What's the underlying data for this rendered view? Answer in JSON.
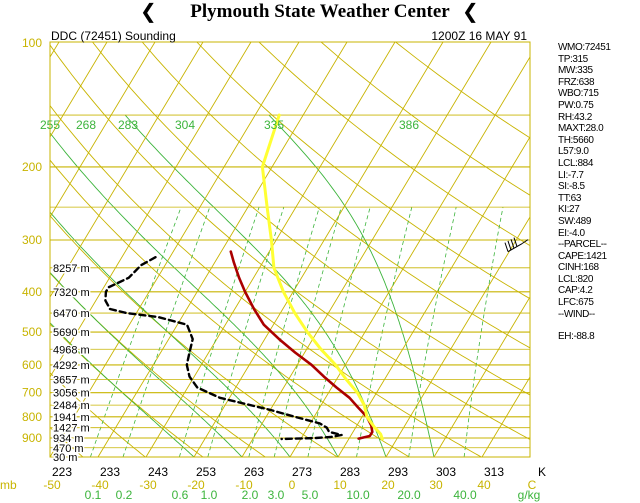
{
  "header": {
    "title": "Plymouth State Weather Center",
    "station": "DDC (72451) Sounding",
    "time": "1200Z 16 MAY 91"
  },
  "colors": {
    "isobar": "#c8b400",
    "skew_isotherm": "#c8b400",
    "dry_adiabat": "#c8b400",
    "moist_adiabat": "#3cb43c",
    "mixing_ratio": "#3cb43c",
    "temperature": "#aa0000",
    "dewpoint": "#000000",
    "parcel": "#ffff33",
    "theta_label": "#3cb43c",
    "axis_label": "#c8b400"
  },
  "sidebar": {
    "items": [
      "WMO:72451",
      "TP:315",
      "MW:335",
      "FRZ:638",
      "WBO:715",
      "PW:0.75",
      "RH:43.2",
      "MAXT:28.0",
      "TH:5660",
      "L57:9.0",
      "LCL:884",
      "LI:-7.7",
      "SI:-8.5",
      "TT:63",
      "KI:27",
      "SW:489",
      "EI:-4.0",
      "--PARCEL--",
      "CAPE:1421",
      "CINH:168",
      "LCL:820",
      "CAP:4.2",
      "LFC:675",
      "--WIND--"
    ],
    "extra": "EH:-88.8"
  },
  "chart_data": {
    "type": "line",
    "subtype": "skew-T log-P sounding",
    "title": "DDC (72451) Sounding",
    "pressure_labels": [
      "100",
      "200",
      "300",
      "400",
      "500",
      "600",
      "700",
      "800",
      "900"
    ],
    "pressure_axis_unit": "mb",
    "temperature_ticks": [
      "-50",
      "-40",
      "-30",
      "-20",
      "-10",
      "0",
      "10",
      "20",
      "30",
      "40",
      "C"
    ],
    "kelvin_ticks": [
      "223",
      "233",
      "243",
      "253",
      "263",
      "273",
      "283",
      "293",
      "303",
      "313",
      "K"
    ],
    "mixing_ratio_ticks": [
      "0.1",
      "0.2",
      "0.6",
      "1.0",
      "2.0",
      "3.0",
      "5.0",
      "10.0",
      "20.0",
      "40.0",
      "g/kg"
    ],
    "theta_labels": [
      "255",
      "268",
      "283",
      "304",
      "335",
      "386"
    ],
    "height_labels": [
      {
        "p": 350,
        "label": "8257 m"
      },
      {
        "p": 400,
        "label": "7320 m"
      },
      {
        "p": 450,
        "label": "6470 m"
      },
      {
        "p": 500,
        "label": "5690 m"
      },
      {
        "p": 550,
        "label": "4968 m"
      },
      {
        "p": 600,
        "label": "4292 m"
      },
      {
        "p": 650,
        "label": "3657 m"
      },
      {
        "p": 700,
        "label": "3056 m"
      },
      {
        "p": 750,
        "label": "2484 m"
      },
      {
        "p": 800,
        "label": "1941 m"
      },
      {
        "p": 850,
        "label": "1427 m"
      },
      {
        "p": 900,
        "label": "934 m"
      },
      {
        "p": 950,
        "label": "470 m"
      },
      {
        "p": 1000,
        "label": "30 m"
      }
    ],
    "series": [
      {
        "key": "temperature",
        "points": [
          [
            320,
            -38
          ],
          [
            340,
            -36
          ],
          [
            370,
            -33
          ],
          [
            400,
            -30
          ],
          [
            440,
            -26
          ],
          [
            480,
            -22
          ],
          [
            520,
            -17
          ],
          [
            560,
            -12
          ],
          [
            600,
            -7
          ],
          [
            640,
            -3
          ],
          [
            680,
            1
          ],
          [
            720,
            5
          ],
          [
            760,
            8
          ],
          [
            800,
            11
          ],
          [
            840,
            13
          ],
          [
            870,
            14
          ],
          [
            890,
            14
          ],
          [
            903,
            12
          ]
        ]
      },
      {
        "key": "dewpoint",
        "points": [
          [
            330,
            -53
          ],
          [
            345,
            -55
          ],
          [
            370,
            -56
          ],
          [
            390,
            -59
          ],
          [
            400,
            -59
          ],
          [
            420,
            -58
          ],
          [
            440,
            -56
          ],
          [
            450,
            -52
          ],
          [
            460,
            -45
          ],
          [
            480,
            -38
          ],
          [
            520,
            -35
          ],
          [
            560,
            -34
          ],
          [
            600,
            -33
          ],
          [
            640,
            -31
          ],
          [
            680,
            -28
          ],
          [
            720,
            -22
          ],
          [
            770,
            -10
          ],
          [
            800,
            -4
          ],
          [
            830,
            2
          ],
          [
            850,
            4
          ],
          [
            870,
            5
          ],
          [
            885,
            8
          ],
          [
            895,
            6
          ],
          [
            900,
            3
          ],
          [
            905,
            -4
          ]
        ]
      },
      {
        "key": "parcel",
        "points": [
          [
            150,
            -45
          ],
          [
            200,
            -42
          ],
          [
            250,
            -36
          ],
          [
            300,
            -31
          ],
          [
            350,
            -27
          ],
          [
            400,
            -22
          ],
          [
            450,
            -17
          ],
          [
            500,
            -12
          ],
          [
            550,
            -7
          ],
          [
            600,
            -2
          ],
          [
            650,
            2
          ],
          [
            700,
            6
          ],
          [
            750,
            9
          ],
          [
            800,
            11
          ],
          [
            850,
            14
          ],
          [
            880,
            16
          ],
          [
            905,
            17
          ]
        ]
      }
    ],
    "wind_barb": {
      "p": 320,
      "type": "wind barb"
    },
    "ylim": [
      100,
      1000
    ],
    "xlim": [
      -50,
      50
    ]
  }
}
